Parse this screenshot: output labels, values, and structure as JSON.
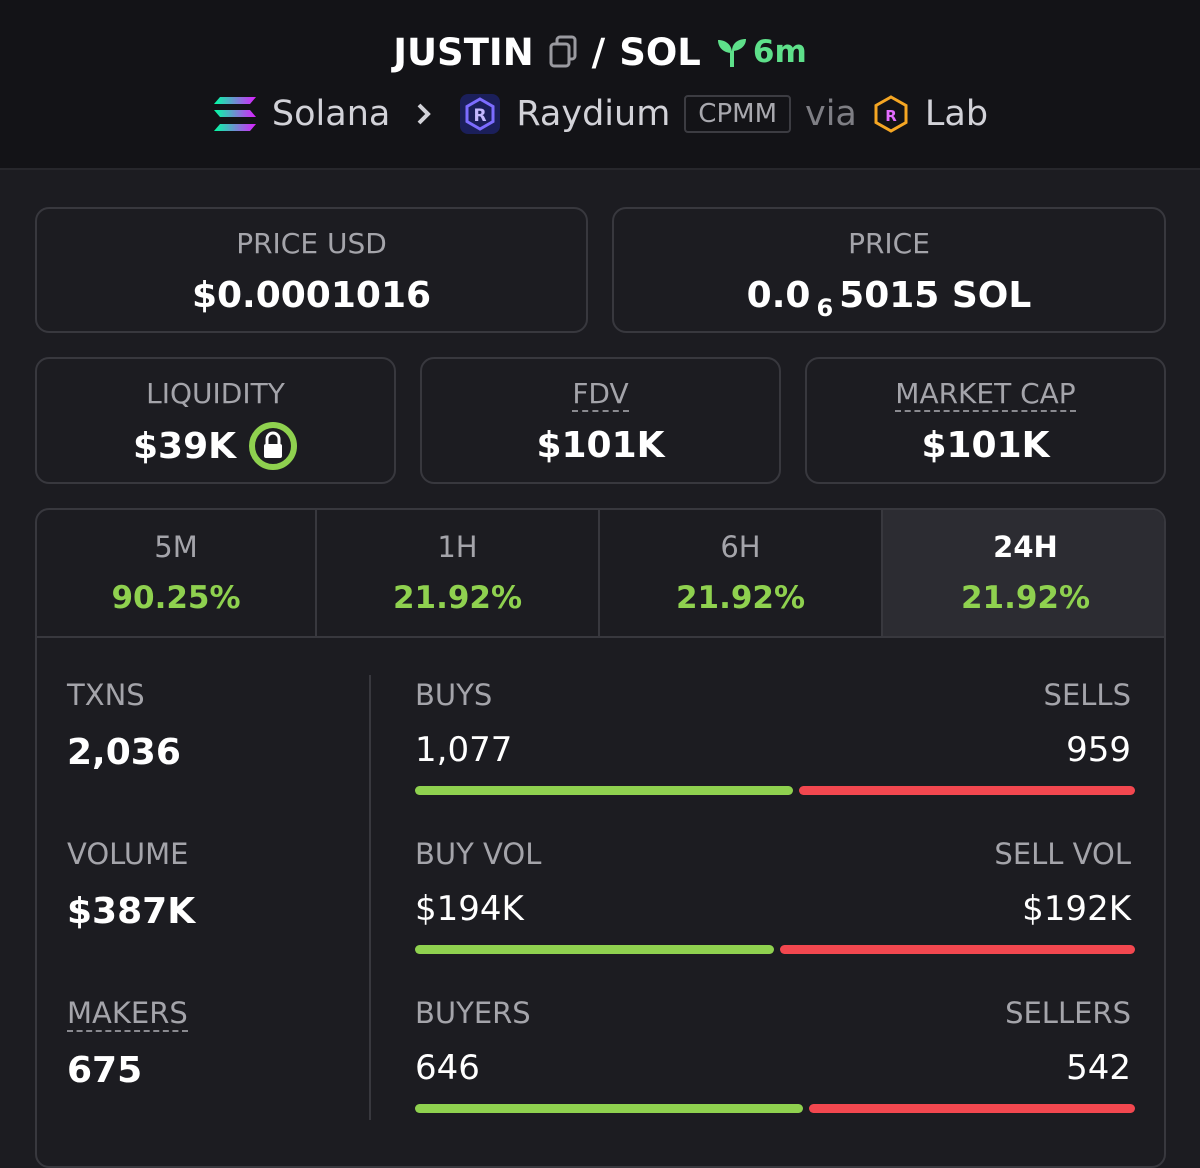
{
  "header": {
    "token": "JUSTIN",
    "separator": "/",
    "quote": "SOL",
    "age": "6m",
    "chain": "Solana",
    "dex": "Raydium",
    "pool_type": "CPMM",
    "via": "via",
    "launchpad": "Lab"
  },
  "cards": {
    "price_usd": {
      "label": "PRICE USD",
      "value": "$0.0001016"
    },
    "price": {
      "label": "PRICE",
      "prefix": "0.0",
      "subscript": "6",
      "rest": "5015 SOL"
    },
    "liquidity": {
      "label": "LIQUIDITY",
      "value": "$39K"
    },
    "fdv": {
      "label": "FDV",
      "value": "$101K"
    },
    "market_cap": {
      "label": "MARKET CAP",
      "value": "$101K"
    }
  },
  "tabs": [
    {
      "label": "5M",
      "change": "90.25%"
    },
    {
      "label": "1H",
      "change": "21.92%"
    },
    {
      "label": "6H",
      "change": "21.92%"
    },
    {
      "label": "24H",
      "change": "21.92%"
    }
  ],
  "active_tab": 3,
  "stats": {
    "left": [
      {
        "label": "TXNS",
        "value": "2,036"
      },
      {
        "label": "VOLUME",
        "value": "$387K"
      },
      {
        "label": "MAKERS",
        "value": "675"
      }
    ],
    "rows": [
      {
        "left_label": "BUYS",
        "right_label": "SELLS",
        "left": {
          "value": 1077,
          "label": "1,077"
        },
        "right": {
          "value": 959,
          "label": "959"
        }
      },
      {
        "left_label": "BUY VOL",
        "right_label": "SELL VOL",
        "left": {
          "value": 194000,
          "label": "$194K"
        },
        "right": {
          "value": 192000,
          "label": "$192K"
        }
      },
      {
        "left_label": "BUYERS",
        "right_label": "SELLERS",
        "left": {
          "value": 646,
          "label": "646"
        },
        "right": {
          "value": 542,
          "label": "542"
        }
      }
    ]
  }
}
